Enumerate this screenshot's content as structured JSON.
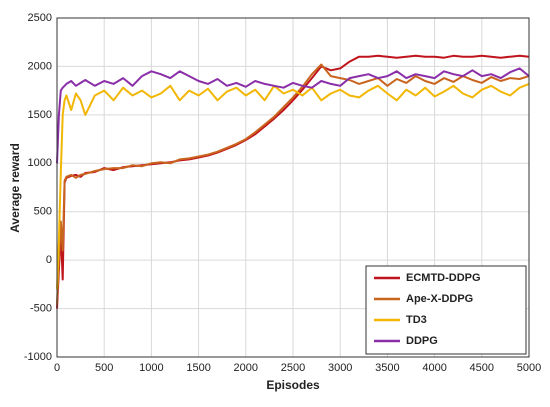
{
  "chart_data": {
    "type": "line",
    "xlabel": "Episodes",
    "ylabel": "Average reward",
    "x": [
      0,
      20,
      40,
      60,
      80,
      100,
      150,
      200,
      250,
      300,
      400,
      500,
      600,
      700,
      800,
      900,
      1000,
      1100,
      1200,
      1300,
      1400,
      1500,
      1600,
      1700,
      1800,
      1900,
      2000,
      2100,
      2200,
      2300,
      2400,
      2500,
      2600,
      2700,
      2800,
      2900,
      3000,
      3100,
      3200,
      3300,
      3400,
      3500,
      3600,
      3700,
      3800,
      3900,
      4000,
      4100,
      4200,
      4300,
      4400,
      4500,
      4600,
      4700,
      4800,
      4900,
      5000
    ],
    "series": [
      {
        "name": "ECMTD-DDPG",
        "color": "#c0141c",
        "values": [
          -500,
          -100,
          300,
          -200,
          800,
          850,
          870,
          880,
          860,
          900,
          910,
          950,
          930,
          960,
          970,
          980,
          990,
          1000,
          1010,
          1030,
          1040,
          1060,
          1080,
          1110,
          1150,
          1190,
          1240,
          1300,
          1380,
          1460,
          1550,
          1650,
          1760,
          1880,
          2000,
          1960,
          1980,
          2050,
          2100,
          2100,
          2110,
          2100,
          2090,
          2100,
          2110,
          2100,
          2100,
          2090,
          2110,
          2100,
          2100,
          2110,
          2100,
          2090,
          2100,
          2110,
          2100
        ]
      },
      {
        "name": "Ape-X-DDPG",
        "color": "#c8641e",
        "values": [
          -450,
          0,
          400,
          100,
          820,
          860,
          880,
          850,
          880,
          890,
          920,
          940,
          950,
          950,
          980,
          970,
          1000,
          1010,
          1000,
          1040,
          1050,
          1070,
          1090,
          1120,
          1160,
          1200,
          1250,
          1320,
          1400,
          1480,
          1580,
          1680,
          1790,
          1920,
          2020,
          1900,
          1880,
          1860,
          1820,
          1850,
          1880,
          1800,
          1870,
          1830,
          1900,
          1850,
          1820,
          1880,
          1840,
          1900,
          1860,
          1830,
          1890,
          1850,
          1880,
          1870,
          1900
        ]
      },
      {
        "name": "TD3",
        "color": "#f2b705",
        "values": [
          -300,
          200,
          900,
          1500,
          1650,
          1700,
          1550,
          1720,
          1650,
          1500,
          1700,
          1750,
          1650,
          1780,
          1700,
          1750,
          1680,
          1720,
          1800,
          1650,
          1750,
          1700,
          1770,
          1650,
          1740,
          1780,
          1700,
          1760,
          1650,
          1800,
          1720,
          1760,
          1700,
          1780,
          1650,
          1720,
          1760,
          1700,
          1680,
          1750,
          1800,
          1720,
          1650,
          1760,
          1700,
          1780,
          1690,
          1740,
          1800,
          1720,
          1680,
          1760,
          1800,
          1740,
          1700,
          1780,
          1820
        ]
      },
      {
        "name": "DDPG",
        "color": "#8a2fa8",
        "values": [
          1000,
          1500,
          1750,
          1780,
          1800,
          1820,
          1850,
          1800,
          1830,
          1860,
          1800,
          1850,
          1820,
          1880,
          1800,
          1900,
          1950,
          1920,
          1880,
          1950,
          1900,
          1850,
          1820,
          1870,
          1800,
          1830,
          1790,
          1850,
          1820,
          1800,
          1780,
          1830,
          1800,
          1780,
          1850,
          1820,
          1800,
          1880,
          1900,
          1920,
          1880,
          1900,
          1950,
          1880,
          1920,
          1900,
          1880,
          1950,
          1920,
          1900,
          1960,
          1900,
          1920,
          1880,
          1940,
          1980,
          1900
        ]
      }
    ],
    "xlim": [
      0,
      5000
    ],
    "xticks": [
      0,
      500,
      1000,
      1500,
      2000,
      2500,
      3000,
      3500,
      4000,
      4500,
      5000
    ],
    "ylim": [
      -1000,
      2500
    ],
    "yticks": [
      -1000,
      -500,
      0,
      500,
      1000,
      1500,
      2000,
      2500
    ],
    "grid": true,
    "legend": "lower right"
  }
}
